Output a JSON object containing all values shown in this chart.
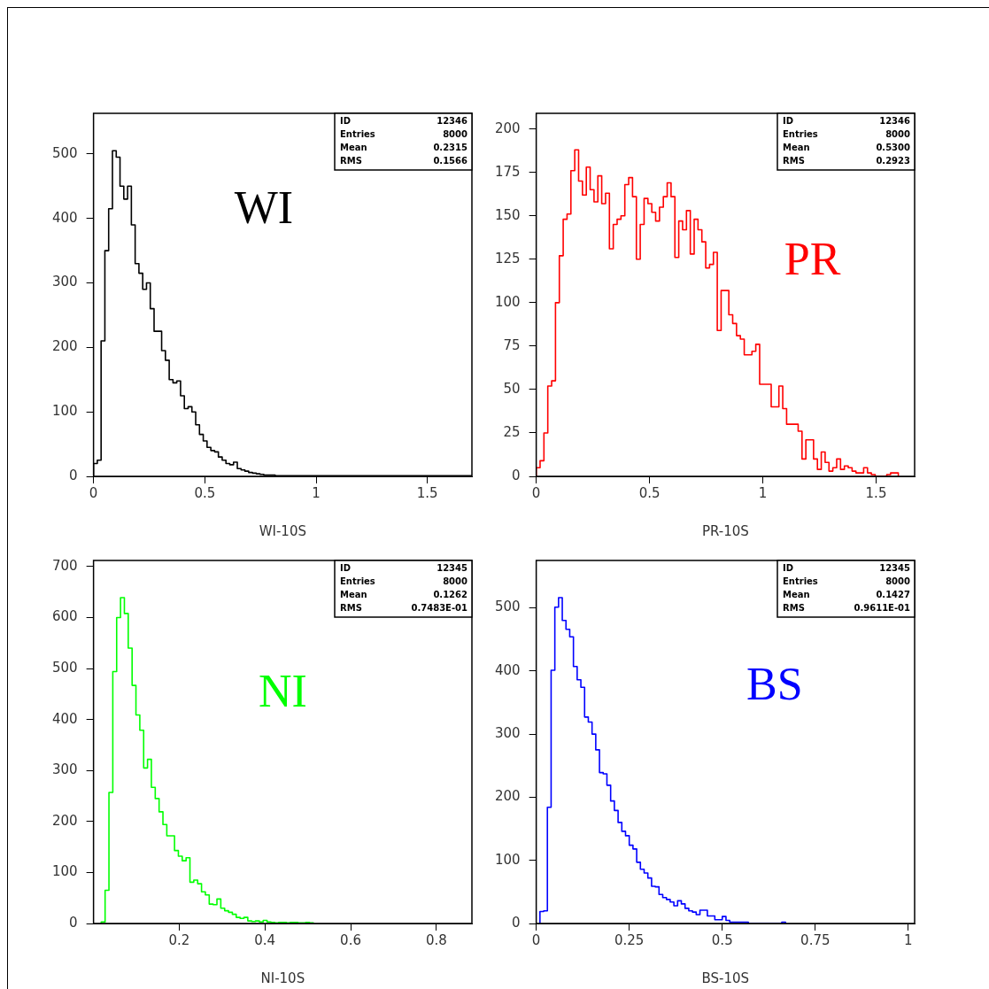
{
  "chart_data": [
    {
      "type": "histogram",
      "title": "WI",
      "xlabel": "WI-10S",
      "color": "#000000",
      "annotations": [
        "ID 12346",
        "Entries 8000",
        "Mean 0.2315",
        "RMS 0.1566"
      ],
      "xlim": [
        0,
        1.7
      ],
      "xticks": [
        0,
        0.5,
        1,
        1.5
      ],
      "ylim": [
        0,
        563
      ],
      "yticks": [
        0,
        100,
        200,
        300,
        400,
        500
      ],
      "bins": [
        0,
        0.017,
        0.034,
        0.051,
        0.068,
        0.085,
        0.102,
        0.119,
        0.136,
        0.153,
        0.17,
        0.187,
        0.204,
        0.221,
        0.238,
        0.255,
        0.272,
        0.289,
        0.306,
        0.323,
        0.34,
        0.357,
        0.374,
        0.391,
        0.408,
        0.425,
        0.442,
        0.459,
        0.476,
        0.493,
        0.51,
        0.527,
        0.544,
        0.561,
        0.578,
        0.595,
        0.612,
        0.629,
        0.646,
        0.663,
        0.68,
        0.697,
        0.714,
        0.731,
        0.748,
        0.765,
        0.782,
        0.799,
        0.816,
        0.833,
        0.85,
        1.7
      ],
      "values": [
        20,
        25,
        210,
        350,
        415,
        505,
        495,
        450,
        430,
        450,
        390,
        330,
        315,
        290,
        300,
        260,
        225,
        225,
        195,
        180,
        150,
        145,
        148,
        125,
        105,
        108,
        100,
        80,
        65,
        55,
        45,
        40,
        38,
        30,
        25,
        20,
        18,
        22,
        12,
        10,
        8,
        6,
        5,
        4,
        3,
        2,
        2,
        2,
        1,
        1,
        1
      ]
    },
    {
      "type": "histogram",
      "title": "PR",
      "xlabel": "PR-10S",
      "color": "#ff0000",
      "annotations": [
        "ID 12346",
        "Entries 8000",
        "Mean 0.5300",
        "RMS 0.2923"
      ],
      "xlim": [
        0,
        1.67
      ],
      "xticks": [
        0,
        0.5,
        1,
        1.5
      ],
      "ylim": [
        0,
        209
      ],
      "yticks": [
        0,
        25,
        50,
        75,
        100,
        125,
        150,
        175,
        200
      ],
      "bins": [
        0,
        0.017,
        0.034,
        0.051,
        0.068,
        0.085,
        0.102,
        0.119,
        0.136,
        0.153,
        0.17,
        0.187,
        0.204,
        0.221,
        0.238,
        0.255,
        0.272,
        0.289,
        0.306,
        0.323,
        0.34,
        0.357,
        0.374,
        0.391,
        0.408,
        0.425,
        0.442,
        0.459,
        0.476,
        0.493,
        0.51,
        0.527,
        0.544,
        0.561,
        0.578,
        0.595,
        0.612,
        0.629,
        0.646,
        0.663,
        0.68,
        0.697,
        0.714,
        0.731,
        0.748,
        0.765,
        0.782,
        0.799,
        0.816,
        0.833,
        0.85,
        0.867,
        0.884,
        0.901,
        0.918,
        0.935,
        0.952,
        0.969,
        0.986,
        1.003,
        1.02,
        1.037,
        1.054,
        1.071,
        1.088,
        1.105,
        1.122,
        1.139,
        1.156,
        1.173,
        1.19,
        1.207,
        1.224,
        1.241,
        1.258,
        1.275,
        1.292,
        1.309,
        1.326,
        1.343,
        1.36,
        1.377,
        1.394,
        1.411,
        1.428,
        1.445,
        1.462,
        1.479,
        1.496,
        1.513,
        1.53,
        1.547,
        1.564,
        1.581,
        1.598
      ],
      "values": [
        5,
        9,
        25,
        52,
        55,
        100,
        127,
        148,
        151,
        176,
        188,
        170,
        162,
        178,
        165,
        158,
        173,
        157,
        163,
        131,
        145,
        148,
        150,
        168,
        172,
        161,
        125,
        145,
        160,
        157,
        152,
        147,
        155,
        161,
        169,
        161,
        126,
        147,
        142,
        153,
        128,
        148,
        142,
        135,
        120,
        122,
        129,
        84,
        107,
        107,
        93,
        88,
        81,
        79,
        70,
        70,
        72,
        76,
        53,
        53,
        53,
        40,
        40,
        52,
        39,
        30,
        30,
        30,
        26,
        10,
        21,
        21,
        10,
        4,
        14,
        8,
        3,
        5,
        10,
        4,
        6,
        5,
        3,
        2,
        2,
        5,
        2,
        1,
        0,
        0,
        0,
        1,
        2,
        2
      ]
    },
    {
      "type": "histogram",
      "title": "NI",
      "xlabel": "NI-10S",
      "color": "#00ff00",
      "annotations": [
        "ID 12345",
        "Entries 8000",
        "Mean 0.1262",
        "RMS 0.7483E-01"
      ],
      "xlim": [
        0,
        0.883
      ],
      "xticks": [
        0.2,
        0.4,
        0.6,
        0.8
      ],
      "ylim": [
        0,
        712
      ],
      "yticks": [
        0,
        100,
        200,
        300,
        400,
        500,
        600,
        700
      ],
      "bins": [
        0.018,
        0.027,
        0.036,
        0.045,
        0.054,
        0.063,
        0.072,
        0.081,
        0.09,
        0.099,
        0.108,
        0.117,
        0.126,
        0.135,
        0.144,
        0.153,
        0.162,
        0.171,
        0.18,
        0.189,
        0.198,
        0.207,
        0.216,
        0.225,
        0.234,
        0.243,
        0.252,
        0.261,
        0.27,
        0.279,
        0.288,
        0.297,
        0.306,
        0.315,
        0.324,
        0.333,
        0.342,
        0.351,
        0.36,
        0.369,
        0.378,
        0.387,
        0.396,
        0.405,
        0.414,
        0.423,
        0.432,
        0.441,
        0.45,
        0.459,
        0.468,
        0.477,
        0.486,
        0.495,
        0.504,
        0.513
      ],
      "values": [
        3,
        65,
        257,
        494,
        600,
        639,
        608,
        540,
        467,
        409,
        379,
        305,
        322,
        267,
        245,
        219,
        194,
        172,
        172,
        143,
        132,
        123,
        129,
        81,
        85,
        78,
        62,
        56,
        38,
        37,
        48,
        30,
        25,
        22,
        18,
        12,
        10,
        12,
        5,
        4,
        5,
        3,
        6,
        3,
        2,
        1,
        2,
        2,
        1,
        2,
        2,
        1,
        1,
        2,
        1
      ]
    },
    {
      "type": "histogram",
      "title": "BS",
      "xlabel": "BS-10S",
      "color": "#0000ff",
      "annotations": [
        "ID 12345",
        "Entries 8000",
        "Mean 0.1427",
        "RMS 0.9611E-01"
      ],
      "xlim": [
        0,
        1.017
      ],
      "xticks": [
        0,
        0.25,
        0.5,
        0.75,
        1
      ],
      "ylim": [
        0,
        575
      ],
      "yticks": [
        0,
        100,
        200,
        300,
        400,
        500
      ],
      "bins": [
        0.01,
        0.02,
        0.03,
        0.04,
        0.05,
        0.06,
        0.07,
        0.08,
        0.09,
        0.1,
        0.11,
        0.12,
        0.13,
        0.14,
        0.15,
        0.16,
        0.17,
        0.18,
        0.19,
        0.2,
        0.21,
        0.22,
        0.23,
        0.24,
        0.25,
        0.26,
        0.27,
        0.28,
        0.29,
        0.3,
        0.31,
        0.32,
        0.33,
        0.34,
        0.35,
        0.36,
        0.37,
        0.38,
        0.39,
        0.4,
        0.41,
        0.42,
        0.43,
        0.44,
        0.45,
        0.46,
        0.47,
        0.48,
        0.49,
        0.5,
        0.51,
        0.52,
        0.53,
        0.54,
        0.55,
        0.56,
        0.57,
        0.58,
        0.59,
        0.6,
        0.61,
        0.62,
        0.63,
        0.64,
        0.65,
        0.66,
        0.67
      ],
      "values": [
        19,
        20,
        184,
        401,
        501,
        516,
        480,
        466,
        454,
        407,
        386,
        374,
        327,
        319,
        300,
        275,
        239,
        237,
        219,
        194,
        179,
        160,
        146,
        139,
        124,
        118,
        97,
        86,
        80,
        72,
        59,
        58,
        46,
        41,
        38,
        34,
        28,
        36,
        31,
        24,
        20,
        18,
        14,
        21,
        21,
        12,
        12,
        6,
        6,
        11,
        5,
        2,
        2,
        2,
        2,
        2,
        0,
        0,
        0,
        0,
        0,
        0,
        0,
        0,
        0,
        2
      ]
    }
  ]
}
